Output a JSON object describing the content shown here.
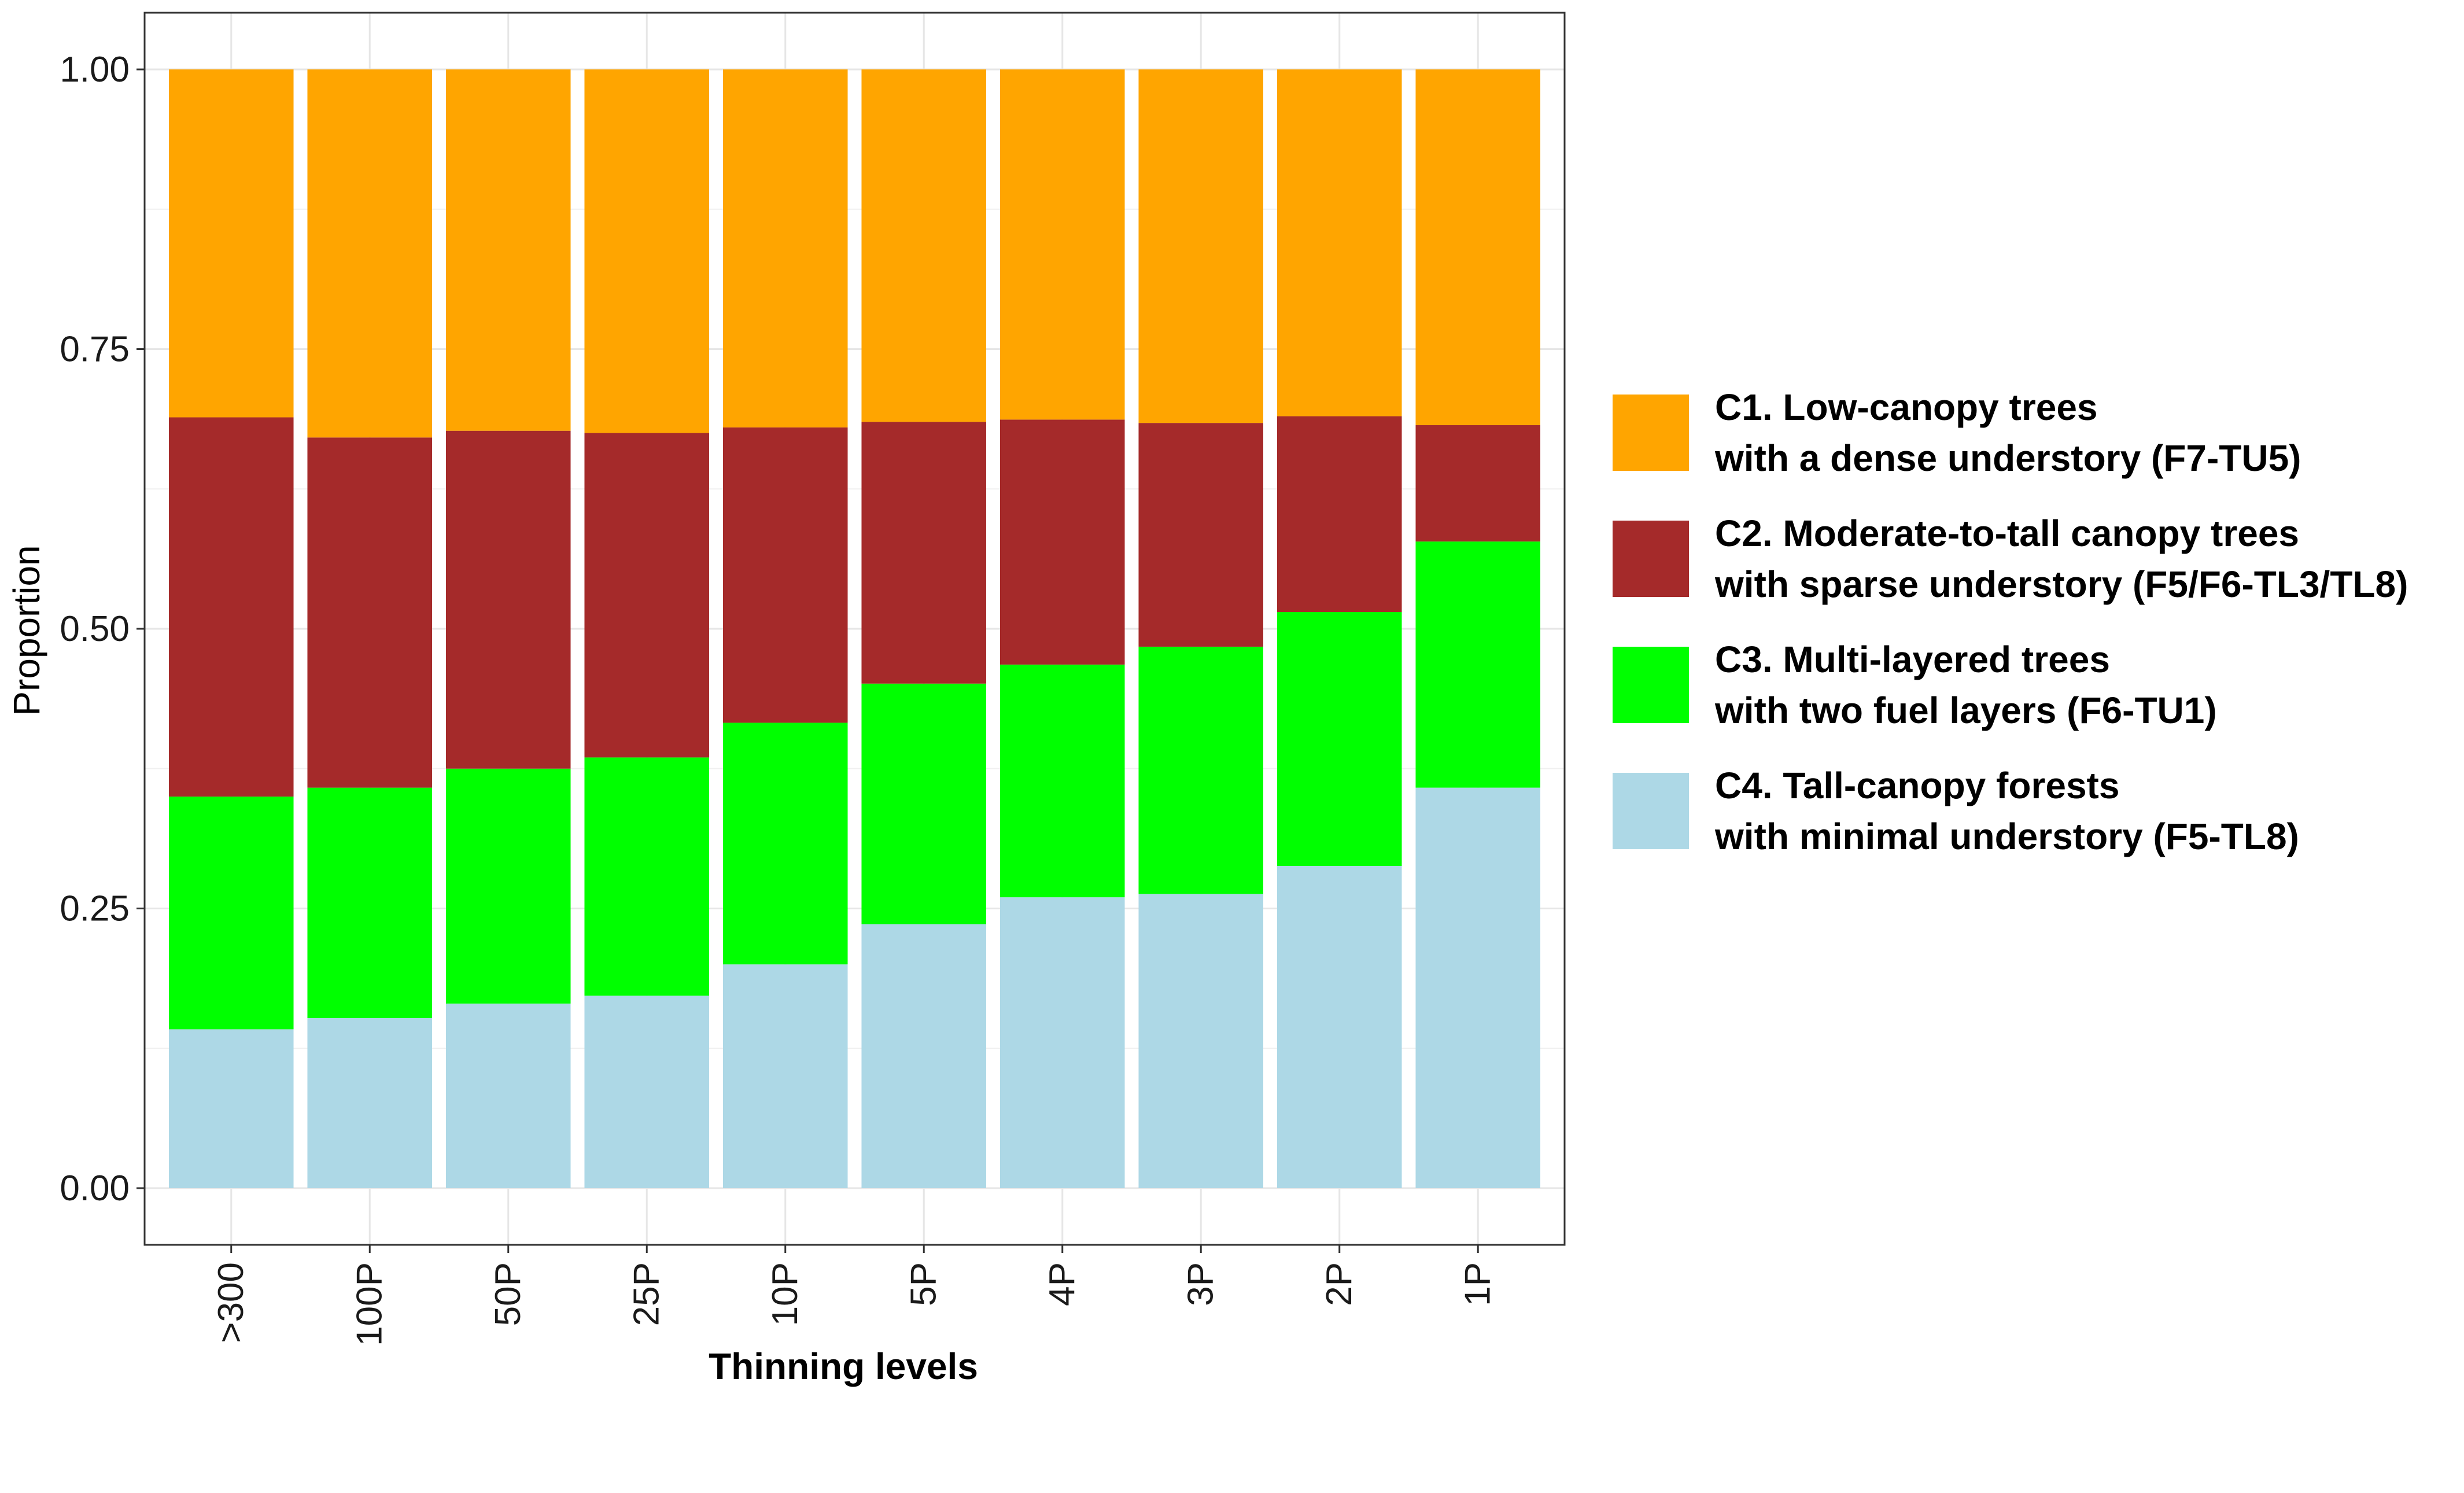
{
  "chart_data": {
    "type": "bar",
    "stacked": true,
    "xlabel": "Thinning levels",
    "ylabel": "Proportion",
    "ylim": [
      0,
      1.0
    ],
    "y_ticks": [
      "0.00",
      "0.25",
      "0.50",
      "0.75",
      "1.00"
    ],
    "y_tick_values": [
      0,
      0.25,
      0.5,
      0.75,
      1.0
    ],
    "categories": [
      ">300",
      "100P",
      "50P",
      "25P",
      "10P",
      "5P",
      "4P",
      "3P",
      "2P",
      "1P"
    ],
    "grid": true,
    "legend_position": "right",
    "series": [
      {
        "name": "C4. Tall-canopy forests with minimal understory (F5-TL8)",
        "legend_lines": [
          "C4. Tall-canopy forests",
          "with minimal understory (F5-TL8)"
        ],
        "color": "#ADD8E6",
        "values": [
          0.142,
          0.152,
          0.165,
          0.172,
          0.2,
          0.236,
          0.26,
          0.263,
          0.288,
          0.358
        ]
      },
      {
        "name": "C3. Multi-layered trees with two fuel layers (F6-TU1)",
        "legend_lines": [
          "C3. Multi-layered trees",
          "with two fuel layers (F6-TU1)"
        ],
        "color": "#00FF00",
        "values": [
          0.208,
          0.206,
          0.21,
          0.213,
          0.216,
          0.215,
          0.208,
          0.221,
          0.227,
          0.22
        ]
      },
      {
        "name": "C2. Moderate-to-tall canopy trees with sparse understory (F5/F6-TL3/TL8)",
        "legend_lines": [
          "C2. Moderate-to-tall canopy trees",
          "with sparse understory (F5/F6-TL3/TL8)"
        ],
        "color": "#A52A2A",
        "values": [
          0.339,
          0.313,
          0.302,
          0.29,
          0.264,
          0.234,
          0.219,
          0.2,
          0.175,
          0.104
        ]
      },
      {
        "name": "C1. Low-canopy trees with a dense understory (F7-TU5)",
        "legend_lines": [
          "C1. Low-canopy trees",
          "with a dense understory (F7-TU5)"
        ],
        "color": "#FFA500",
        "values": [
          0.311,
          0.329,
          0.323,
          0.325,
          0.32,
          0.315,
          0.313,
          0.316,
          0.31,
          0.318
        ]
      }
    ],
    "legend_order": [
      3,
      2,
      1,
      0
    ]
  }
}
